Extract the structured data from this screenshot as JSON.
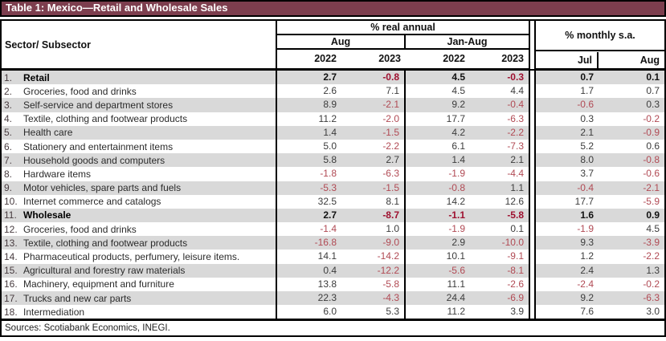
{
  "chart_data": {
    "type": "table",
    "title": "Table 1: Mexico—Retail and Wholesale Sales",
    "row_header": "Sector/ Subsector",
    "group_real_annual": "% real annual",
    "group_monthly_sa": "% monthly s.a.",
    "period_aug": "Aug",
    "period_jan_aug": "Jan-Aug",
    "year_cols": [
      "2022",
      "2023",
      "2022",
      "2023"
    ],
    "month_cols": [
      "Jul",
      "Aug"
    ],
    "column_keys": [
      "Aug 2022",
      "Aug 2023",
      "Jan-Aug 2022",
      "Jan-Aug 2023",
      "Jul monthly s.a.",
      "Aug monthly s.a."
    ],
    "rows": [
      {
        "num": "1.",
        "label": "Retail",
        "bold": true,
        "values": [
          "2.7",
          "-0.8",
          "4.5",
          "-0.3",
          "0.7",
          "0.1"
        ]
      },
      {
        "num": "2.",
        "label": "Groceries, food and drinks",
        "bold": false,
        "values": [
          "2.6",
          "7.1",
          "4.5",
          "4.4",
          "1.7",
          "0.7"
        ]
      },
      {
        "num": "3.",
        "label": "Self-service and department stores",
        "bold": false,
        "values": [
          "8.9",
          "-2.1",
          "9.2",
          "-0.4",
          "-0.6",
          "0.3"
        ]
      },
      {
        "num": "4.",
        "label": "Textile, clothing and footwear products",
        "bold": false,
        "values": [
          "11.2",
          "-2.0",
          "17.7",
          "-6.3",
          "0.3",
          "-0.2"
        ]
      },
      {
        "num": "5.",
        "label": "Health care",
        "bold": false,
        "values": [
          "1.4",
          "-1.5",
          "4.2",
          "-2.2",
          "2.1",
          "-0.9"
        ]
      },
      {
        "num": "6.",
        "label": "Stationery and entertainment items",
        "bold": false,
        "values": [
          "5.0",
          "-2.2",
          "6.1",
          "-7.3",
          "5.2",
          "0.6"
        ]
      },
      {
        "num": "7.",
        "label": "Household goods and computers",
        "bold": false,
        "values": [
          "5.8",
          "2.7",
          "1.4",
          "2.1",
          "8.0",
          "-0.8"
        ]
      },
      {
        "num": "8.",
        "label": "Hardware items",
        "bold": false,
        "values": [
          "-1.8",
          "-6.3",
          "-1.9",
          "-4.4",
          "3.7",
          "-0.6"
        ]
      },
      {
        "num": "9.",
        "label": "Motor vehicles, spare parts and fuels",
        "bold": false,
        "values": [
          "-5.3",
          "-1.5",
          "-0.8",
          "1.1",
          "-0.4",
          "-2.1"
        ]
      },
      {
        "num": "10.",
        "label": "Internet commerce and catalogs",
        "bold": false,
        "values": [
          "32.5",
          "8.1",
          "14.2",
          "12.6",
          "17.7",
          "-5.9"
        ]
      },
      {
        "num": "11.",
        "label": "Wholesale",
        "bold": true,
        "values": [
          "2.7",
          "-8.7",
          "-1.1",
          "-5.8",
          "1.6",
          "0.9"
        ]
      },
      {
        "num": "12.",
        "label": "Groceries, food and drinks",
        "bold": false,
        "values": [
          "-1.4",
          "1.0",
          "-1.9",
          "0.1",
          "-1.9",
          "4.5"
        ]
      },
      {
        "num": "13.",
        "label": "Textile, clothing and footwear products",
        "bold": false,
        "values": [
          "-16.8",
          "-9.0",
          "2.9",
          "-10.0",
          "9.3",
          "-3.9"
        ]
      },
      {
        "num": "14.",
        "label": "Pharmaceutical products, perfumery, leisure items.",
        "bold": false,
        "values": [
          "14.1",
          "-14.2",
          "10.1",
          "-9.1",
          "1.2",
          "-2.2"
        ]
      },
      {
        "num": "15.",
        "label": "Agricultural and forestry raw materials",
        "bold": false,
        "values": [
          "0.4",
          "-12.2",
          "-5.6",
          "-8.1",
          "2.4",
          "1.3"
        ]
      },
      {
        "num": "16.",
        "label": "Machinery, equipment and furniture",
        "bold": false,
        "values": [
          "13.8",
          "-5.8",
          "11.1",
          "-2.6",
          "-2.4",
          "-0.2"
        ]
      },
      {
        "num": "17.",
        "label": "Trucks and new car parts",
        "bold": false,
        "values": [
          "22.3",
          "-4.3",
          "24.4",
          "-6.9",
          "9.2",
          "-6.3"
        ]
      },
      {
        "num": "18.",
        "label": "Intermediation",
        "bold": false,
        "values": [
          "6.0",
          "5.3",
          "11.2",
          "3.9",
          "7.6",
          "3.0"
        ]
      }
    ],
    "source": "Sources: Scotiabank Economics, INEGI.",
    "colors": {
      "title_bar_bg": "#7d3e4e",
      "title_text": "#ffffff",
      "stripe_row_bg": "#d9d9d9",
      "negative_value": "#b14a54",
      "negative_value_bold": "#9e102f",
      "positive_value": "#3c3c3c",
      "border": "#000000"
    }
  }
}
